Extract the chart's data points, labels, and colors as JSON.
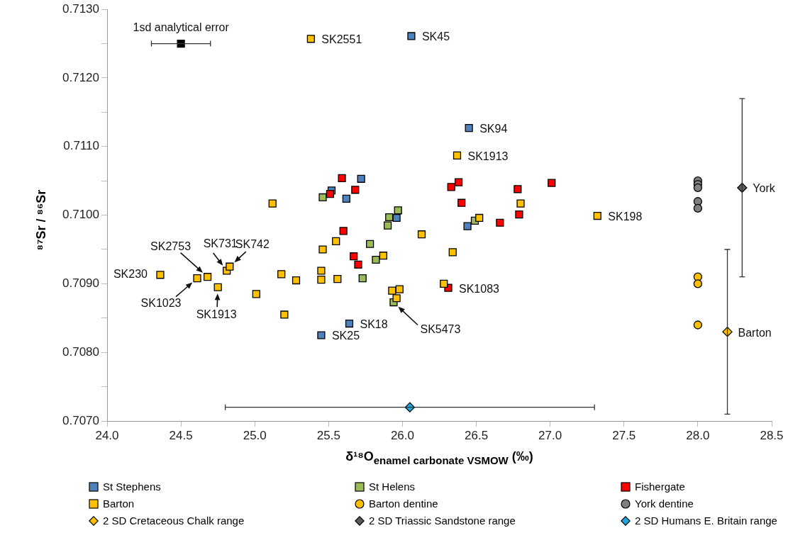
{
  "chart_data": {
    "type": "scatter",
    "xlabel": "δ¹⁸O$_{enamel carbonate VSMOW}$ (‰)",
    "ylabel": "⁸⁷Sr / ⁸⁶Sr",
    "xlim": [
      24,
      28.5
    ],
    "ylim": [
      0.707,
      0.713
    ],
    "xticks": [
      {
        "value": 24,
        "label": "24.0"
      },
      {
        "value": 24.5,
        "label": "24.5"
      },
      {
        "value": 25,
        "label": "25.0"
      },
      {
        "value": 25.5,
        "label": "25.5"
      },
      {
        "value": 26,
        "label": "26.0"
      },
      {
        "value": 26.5,
        "label": "26.5"
      },
      {
        "value": 27,
        "label": "27.0"
      },
      {
        "value": 27.5,
        "label": "27.5"
      },
      {
        "value": 28,
        "label": "28.0"
      },
      {
        "value": 28.5,
        "label": "28.5"
      }
    ],
    "yticks": [
      {
        "value": 0.707,
        "label": "0.7070"
      },
      {
        "value": 0.7075,
        "label": null
      },
      {
        "value": 0.708,
        "label": "0.7080"
      },
      {
        "value": 0.7085,
        "label": null
      },
      {
        "value": 0.709,
        "label": "0.7090"
      },
      {
        "value": 0.7095,
        "label": null
      },
      {
        "value": 0.71,
        "label": "0.7100"
      },
      {
        "value": 0.7105,
        "label": null
      },
      {
        "value": 0.711,
        "label": "0.7110"
      },
      {
        "value": 0.7115,
        "label": null
      },
      {
        "value": 0.712,
        "label": "0.7120"
      },
      {
        "value": 0.7125,
        "label": null
      },
      {
        "value": 0.713,
        "label": "0.7130"
      }
    ],
    "legend": "bottom",
    "annotations": [
      {
        "text": "1sd analytical error",
        "x": 24.5,
        "y": 0.7125
      },
      {
        "text": "SK2551",
        "x": 25.38,
        "y": 0.71257
      },
      {
        "text": "SK45",
        "x": 26.06,
        "y": 0.71261
      },
      {
        "text": "SK94",
        "x": 26.45,
        "y": 0.71127
      },
      {
        "text": "SK1913",
        "x": 26.37,
        "y": 0.71087
      },
      {
        "text": "SK198",
        "x": 27.32,
        "y": 0.70999
      },
      {
        "text": "SK1083",
        "x": 26.31,
        "y": 0.70894
      },
      {
        "text": "SK5473",
        "x": 25.94,
        "y": 0.70873
      },
      {
        "text": "SK18",
        "x": 25.64,
        "y": 0.70842
      },
      {
        "text": "SK25",
        "x": 25.45,
        "y": 0.70825
      },
      {
        "text": "SK230",
        "x": 24.36,
        "y": 0.70913
      },
      {
        "text": "SK2753",
        "x": 24.68,
        "y": 0.7091
      },
      {
        "text": "SK731",
        "x": 24.81,
        "y": 0.70919
      },
      {
        "text": "SK742",
        "x": 24.83,
        "y": 0.70925
      },
      {
        "text": "SK1023",
        "x": 24.61,
        "y": 0.70908
      },
      {
        "text": "SK1913",
        "x": 24.75,
        "y": 0.70895
      },
      {
        "text": "York",
        "x": 28.3,
        "y": 0.7104
      },
      {
        "text": "Barton",
        "x": 28.2,
        "y": 0.7083
      }
    ],
    "series": [
      {
        "name": "St Stephens",
        "color": "#4f81bd",
        "marker": "square",
        "x": [
          25.52,
          25.62,
          25.72,
          25.96,
          26.44,
          26.45,
          26.06,
          25.64,
          25.45
        ],
        "values": [
          0.71036,
          0.71024,
          0.71053,
          0.70996,
          0.70984,
          0.71127,
          0.71261,
          0.70842,
          0.70825
        ]
      },
      {
        "name": "St Helens",
        "color": "#9bbb59",
        "marker": "square",
        "x": [
          25.46,
          25.97,
          25.91,
          25.9,
          25.78,
          25.82,
          25.73,
          25.94,
          26.49
        ],
        "values": [
          0.71026,
          0.71007,
          0.70997,
          0.70985,
          0.70958,
          0.70935,
          0.70908,
          0.70873,
          0.70992
        ]
      },
      {
        "name": "Fishergate",
        "color": "#ff0000",
        "marker": "square",
        "x": [
          25.59,
          25.51,
          25.68,
          25.6,
          25.67,
          25.7,
          26.31,
          26.33,
          26.38,
          26.4,
          26.78,
          26.79,
          26.66,
          27.01
        ],
        "values": [
          0.71054,
          0.71031,
          0.71037,
          0.70977,
          0.7094,
          0.70928,
          0.70894,
          0.71041,
          0.71048,
          0.71018,
          0.71038,
          0.71001,
          0.70989,
          0.71047
        ]
      },
      {
        "name": "Barton",
        "color": "#ffc000",
        "marker": "square",
        "x": [
          24.36,
          24.61,
          24.68,
          24.75,
          24.81,
          24.83,
          25.12,
          25.01,
          25.18,
          25.28,
          25.2,
          25.45,
          25.45,
          25.46,
          25.55,
          25.56,
          25.87,
          26.13,
          26.34,
          26.28,
          25.93,
          25.98,
          25.96,
          26.8,
          26.52,
          26.37,
          27.32,
          25.38
        ],
        "values": [
          0.70913,
          0.70908,
          0.7091,
          0.70895,
          0.70919,
          0.70925,
          0.71017,
          0.70885,
          0.70914,
          0.70905,
          0.70855,
          0.70919,
          0.70906,
          0.7095,
          0.70962,
          0.70907,
          0.70941,
          0.70972,
          0.70946,
          0.709,
          0.7089,
          0.70892,
          0.70879,
          0.71017,
          0.70996,
          0.71087,
          0.70999,
          0.71257
        ]
      },
      {
        "name": "Barton dentine",
        "color": "#ffc000",
        "marker": "circle",
        "x": [
          28,
          28,
          28
        ],
        "values": [
          0.7091,
          0.709,
          0.7084
        ]
      },
      {
        "name": "York dentine",
        "color": "#808080",
        "marker": "circle",
        "x": [
          28,
          28,
          28,
          28,
          28
        ],
        "values": [
          0.7105,
          0.71045,
          0.7104,
          0.7102,
          0.7101
        ]
      },
      {
        "name": "2 SD Cretaceous Chalk range",
        "color": "#ffc000",
        "marker": "diamond",
        "x": [
          28.2
        ],
        "values": [
          0.7083
        ],
        "errors": [
          0.0012
        ]
      },
      {
        "name": "2 SD Triassic Sandstone range",
        "color": "#595959",
        "marker": "diamond",
        "x": [
          28.3
        ],
        "values": [
          0.7104
        ],
        "errors": [
          0.0013
        ]
      },
      {
        "name": "2 SD Humans E. Britain range",
        "color": "#1ca7e0",
        "marker": "diamond",
        "x": [
          26.05
        ],
        "values": [
          0.7072
        ],
        "xerrors": [
          1.25
        ]
      },
      {
        "color": "#000000",
        "marker": "square",
        "x": [
          24.5
        ],
        "values": [
          0.7125
        ],
        "xerrors": [
          0.2
        ]
      }
    ]
  }
}
